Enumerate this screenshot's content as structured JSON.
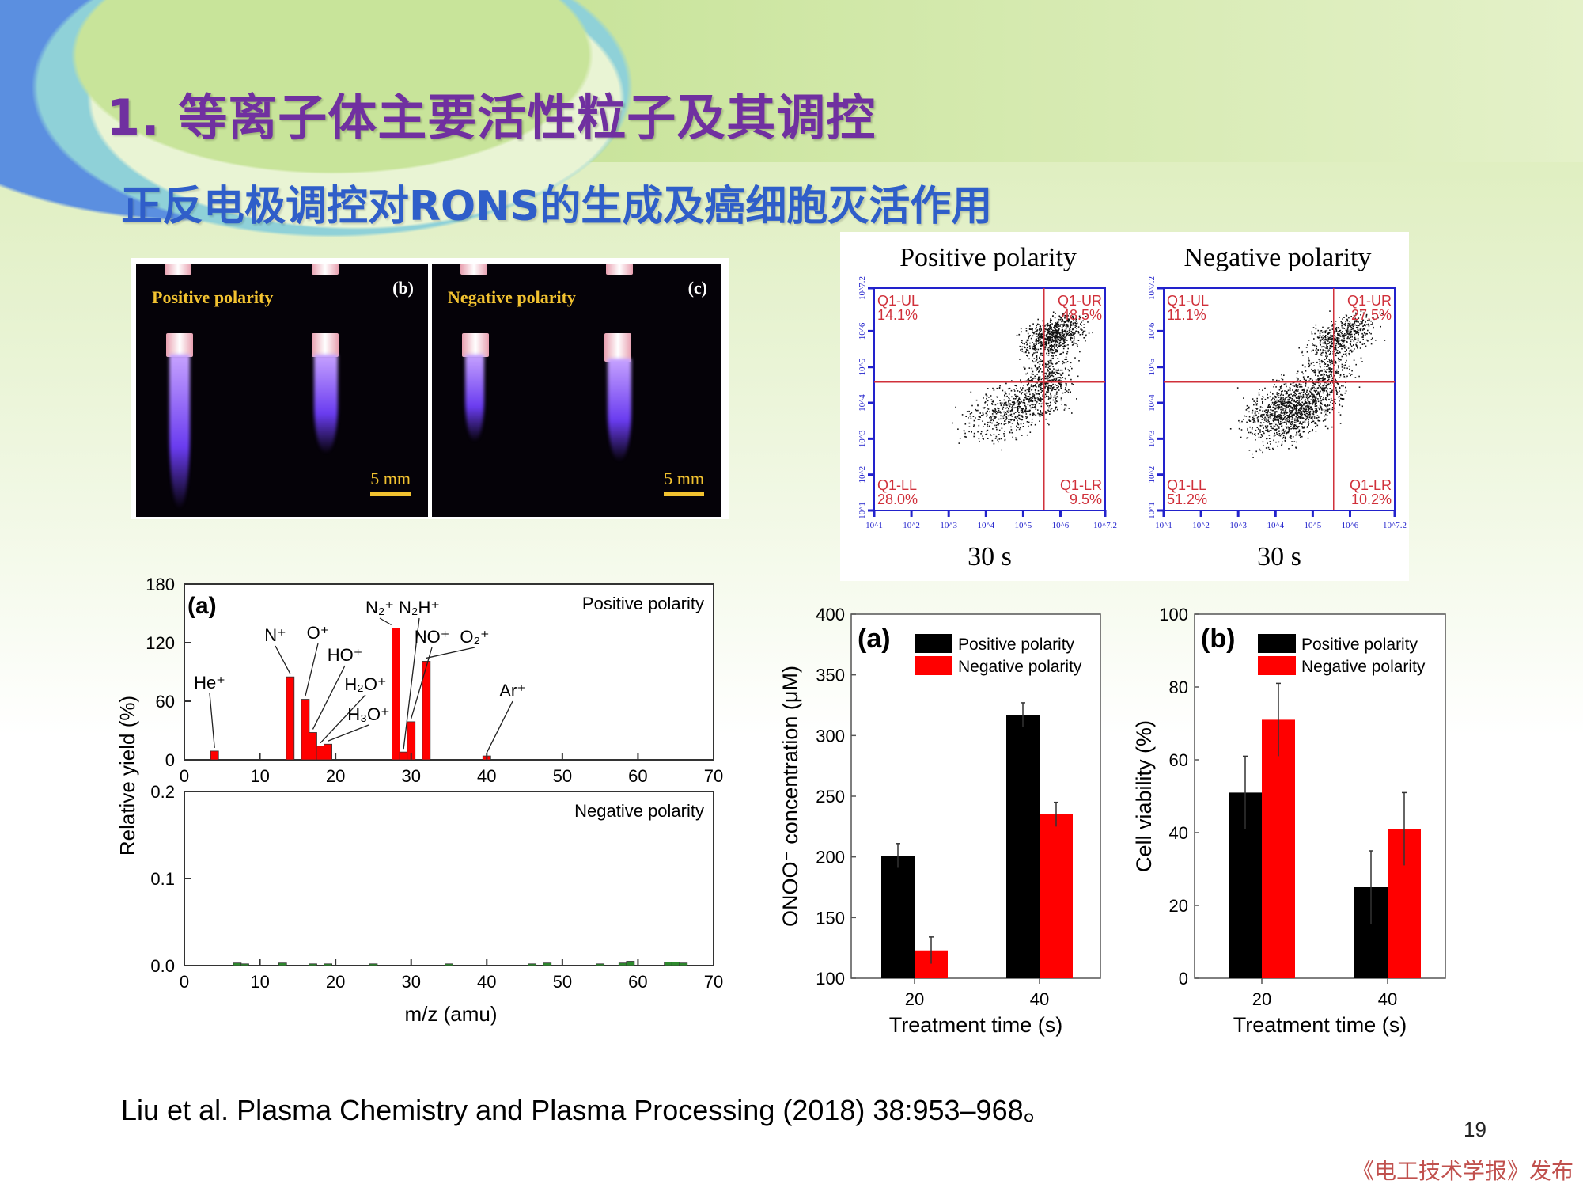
{
  "slide": {
    "title": "1. 等离子体主要活性粒子及其调控",
    "subtitle": "正反电极调控对RONS的生成及癌细胞灭活作用",
    "citation": "Liu et al. Plasma Chemistry and Plasma Processing (2018) 38:953–968。",
    "page_number": "19",
    "publisher": "《电工技术学报》发布"
  },
  "photos": [
    {
      "label": "Positive polarity",
      "tag": "(b)",
      "scale": "5 mm"
    },
    {
      "label": "Negative polarity",
      "tag": "(c)",
      "scale": "5 mm"
    }
  ],
  "colors": {
    "positive": "#000000",
    "negative": "#ff0000",
    "title": "#7030a0",
    "subtitle": "#2f5ec9",
    "gate": "#d0303a",
    "flow_axis": "#2222cc"
  },
  "chart_data": [
    {
      "id": "flow_cytometry",
      "type": "scatter",
      "axis_ticks": [
        "10^1",
        "10^2",
        "10^3",
        "10^4",
        "10^5",
        "10^6",
        "10^7.2"
      ],
      "panels": [
        {
          "title": "Positive polarity",
          "caption": "30 s",
          "quadrants": {
            "UL": [
              "Q1-UL",
              "14.1%"
            ],
            "UR": [
              "Q1-UR",
              "48.5%"
            ],
            "LL": [
              "Q1-LL",
              "28.0%"
            ],
            "LR": [
              "Q1-LR",
              "9.5%"
            ]
          }
        },
        {
          "title": "Negative polarity",
          "caption": "30 s",
          "quadrants": {
            "UL": [
              "Q1-UL",
              "11.1%"
            ],
            "UR": [
              "Q1-UR",
              "27.5%"
            ],
            "LL": [
              "Q1-LL",
              "51.2%"
            ],
            "LR": [
              "Q1-LR",
              "10.2%"
            ]
          }
        }
      ]
    },
    {
      "id": "mass_spectrum",
      "type": "bar",
      "panel_label": "(a)",
      "xlabel": "m/z (amu)",
      "ylabel": "Relative yield (%)",
      "xlim": [
        0,
        70
      ],
      "xticks": [
        0,
        10,
        20,
        30,
        40,
        50,
        60,
        70
      ],
      "panels": [
        {
          "name": "Positive polarity",
          "ylim": [
            0,
            180
          ],
          "yticks": [
            "0",
            "60",
            "120",
            "180"
          ],
          "color": "#ff0000",
          "bars": [
            {
              "x": 4,
              "y": 9,
              "ion": "He⁺"
            },
            {
              "x": 14,
              "y": 85,
              "ion": "N⁺"
            },
            {
              "x": 16,
              "y": 62,
              "ion": "O⁺"
            },
            {
              "x": 17,
              "y": 28,
              "ion": "HO⁺"
            },
            {
              "x": 18,
              "y": 14,
              "ion": "H₂O⁺"
            },
            {
              "x": 19,
              "y": 16,
              "ion": "H₃O⁺"
            },
            {
              "x": 28,
              "y": 135,
              "ion": "N₂⁺"
            },
            {
              "x": 29,
              "y": 8,
              "ion": "N₂H⁺"
            },
            {
              "x": 30,
              "y": 39,
              "ion": "NO⁺"
            },
            {
              "x": 32,
              "y": 101,
              "ion": "O₂⁺"
            },
            {
              "x": 40,
              "y": 4,
              "ion": "Ar⁺"
            }
          ]
        },
        {
          "name": "Negative polarity",
          "ylim": [
            0,
            0.2
          ],
          "yticks": [
            "0.0",
            "0.1",
            "0.2"
          ],
          "color": "#2e8b2e",
          "bars": [
            {
              "x": 7,
              "y": 0.003
            },
            {
              "x": 8,
              "y": 0.002
            },
            {
              "x": 13,
              "y": 0.003
            },
            {
              "x": 17,
              "y": 0.002
            },
            {
              "x": 19,
              "y": 0.002
            },
            {
              "x": 25,
              "y": 0.002
            },
            {
              "x": 35,
              "y": 0.002
            },
            {
              "x": 46,
              "y": 0.002
            },
            {
              "x": 48,
              "y": 0.003
            },
            {
              "x": 55,
              "y": 0.002
            },
            {
              "x": 58,
              "y": 0.003
            },
            {
              "x": 59,
              "y": 0.005
            },
            {
              "x": 64,
              "y": 0.004
            },
            {
              "x": 65,
              "y": 0.004
            },
            {
              "x": 66,
              "y": 0.003
            }
          ]
        }
      ]
    },
    {
      "id": "onoo_concentration",
      "type": "bar",
      "panel_label": "(a)",
      "xlabel": "Treatment time (s)",
      "ylabel": "ONOO⁻ concentration (μM)",
      "categories": [
        "20",
        "40"
      ],
      "ylim": [
        100,
        400
      ],
      "yticks": [
        "100",
        "150",
        "200",
        "250",
        "300",
        "350",
        "400"
      ],
      "series": [
        {
          "name": "Positive polarity",
          "values": [
            201,
            317
          ],
          "errors": [
            10,
            10
          ]
        },
        {
          "name": "Negative polarity",
          "values": [
            123,
            235
          ],
          "errors": [
            11,
            10
          ]
        }
      ]
    },
    {
      "id": "cell_viability",
      "type": "bar",
      "panel_label": "(b)",
      "xlabel": "Treatment time (s)",
      "ylabel": "Cell viability (%)",
      "categories": [
        "20",
        "40"
      ],
      "ylim": [
        0,
        100
      ],
      "yticks": [
        "0",
        "20",
        "40",
        "60",
        "80",
        "100"
      ],
      "series": [
        {
          "name": "Positive polarity",
          "values": [
            51,
            25
          ],
          "errors": [
            10,
            10
          ]
        },
        {
          "name": "Negative polarity",
          "values": [
            71,
            41
          ],
          "errors": [
            10,
            10
          ]
        }
      ]
    }
  ]
}
